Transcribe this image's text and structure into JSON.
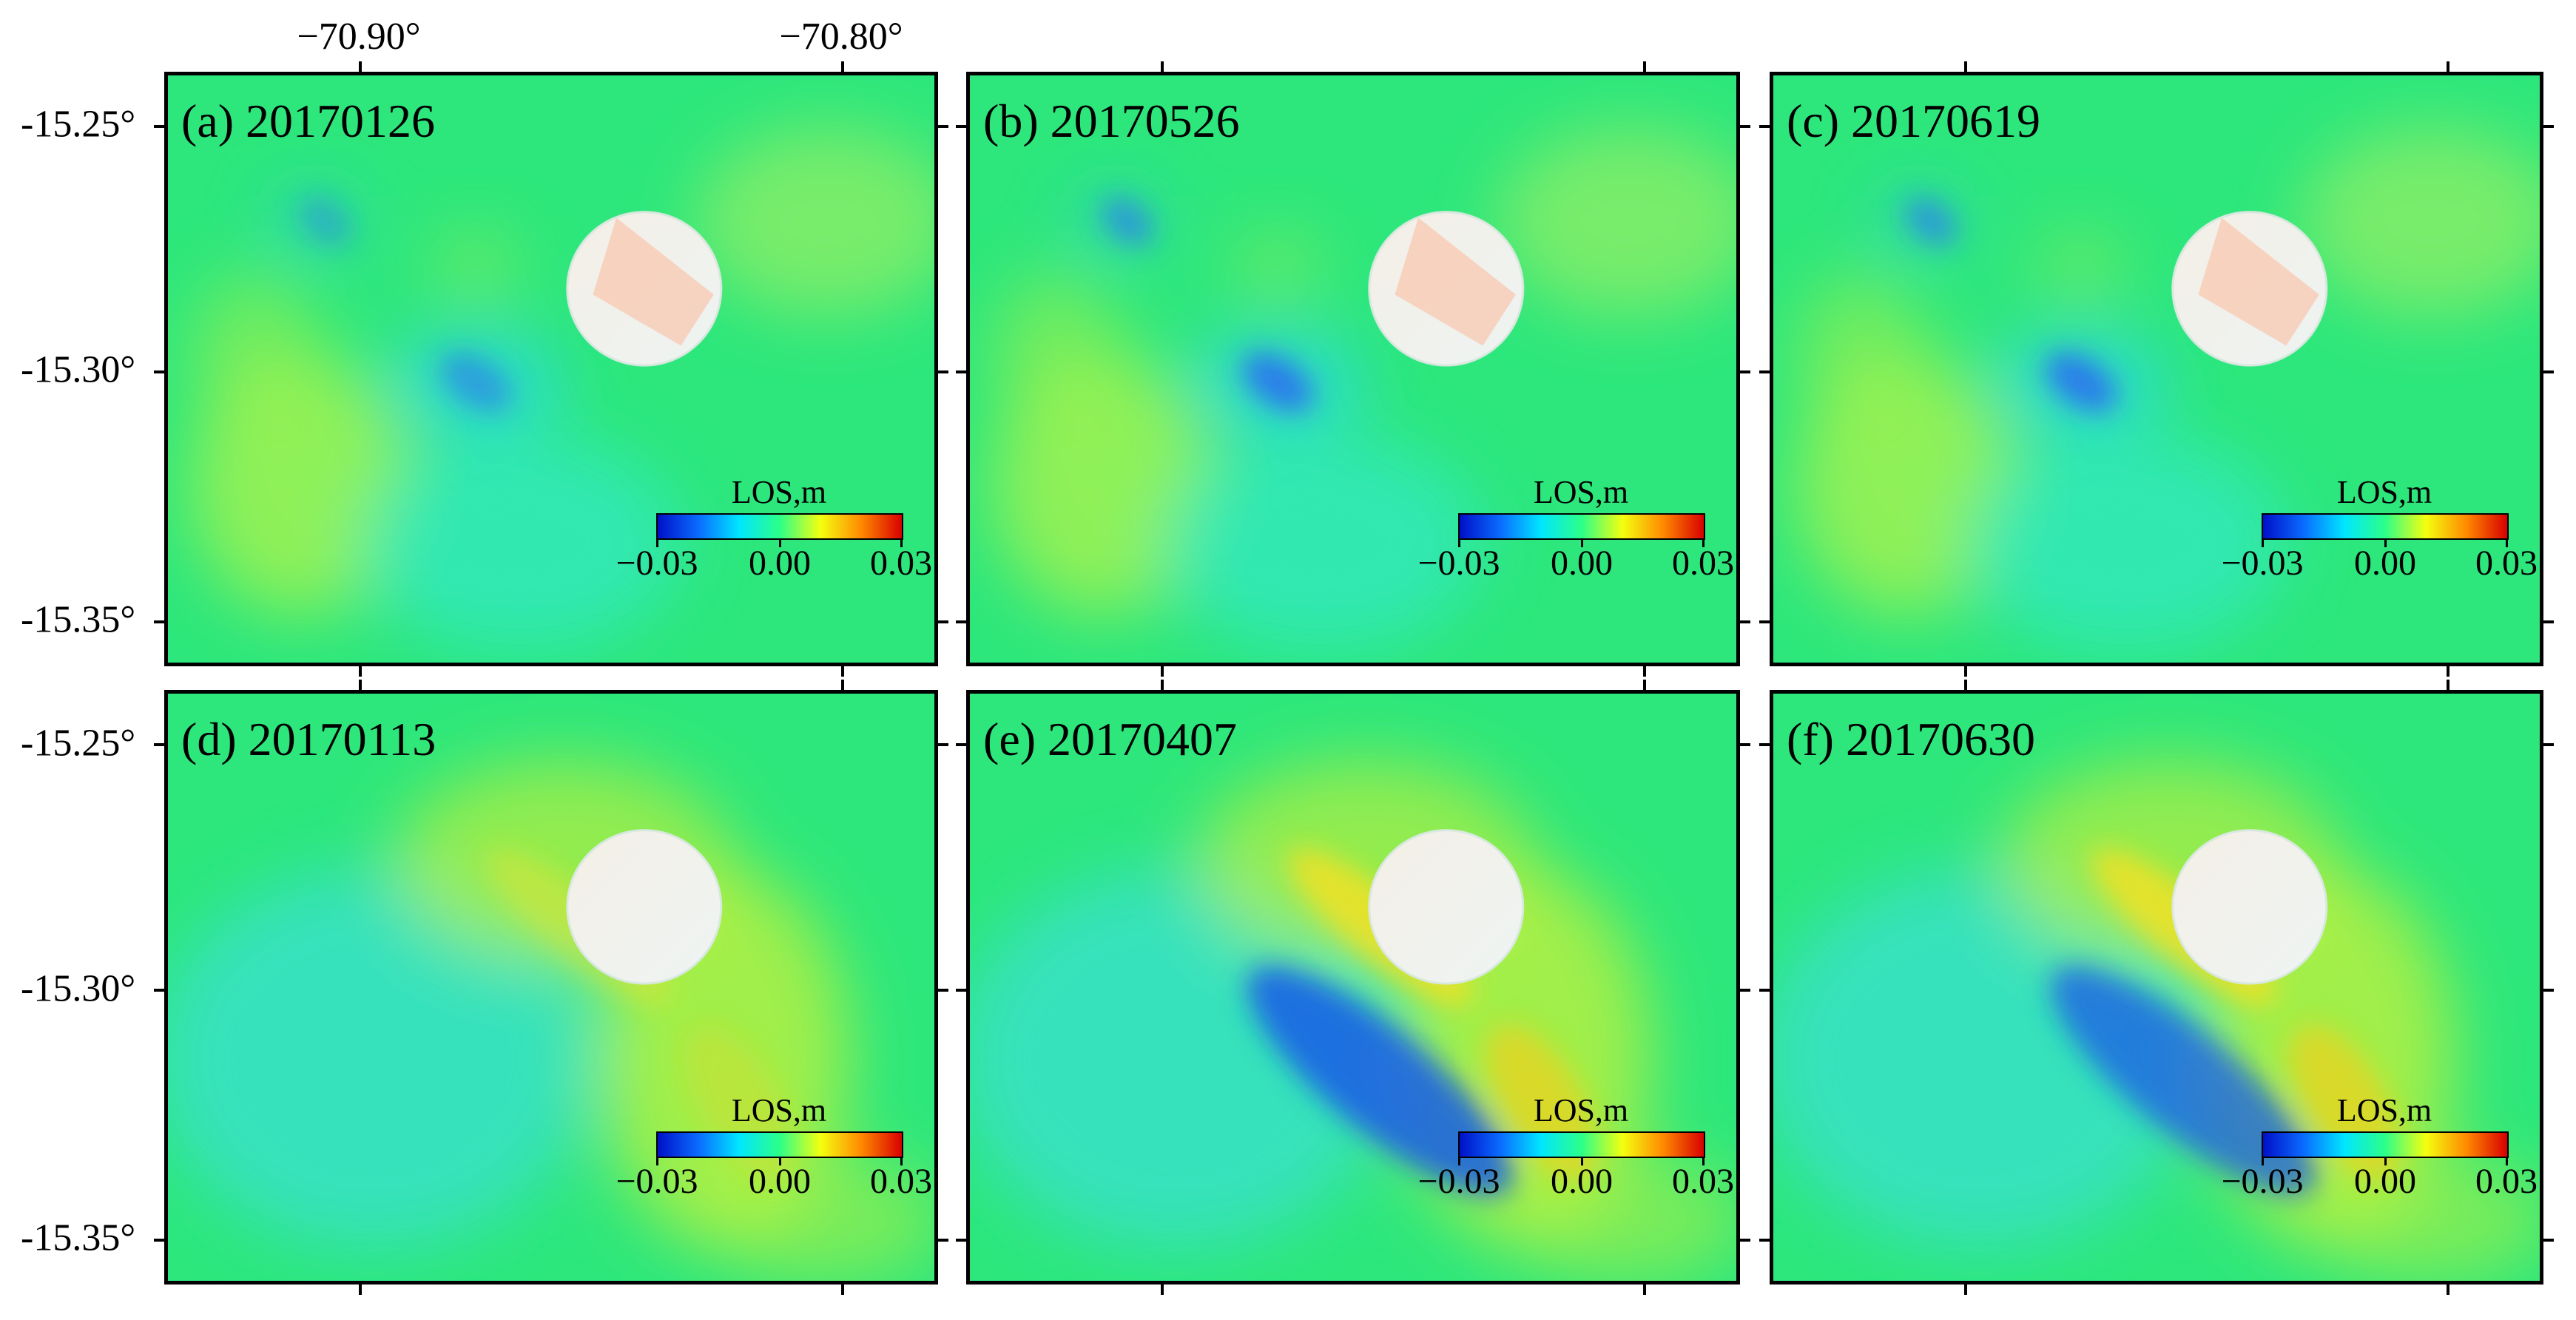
{
  "longitude_labels": [
    "−70.90°",
    "−70.80°"
  ],
  "latitude_labels": [
    "-15.25°",
    "-15.30°",
    "-15.35°"
  ],
  "colorbar": {
    "title": "LOS,m",
    "ticks": [
      "−0.03",
      "0.00",
      "0.03"
    ],
    "range": [
      -0.03,
      0.03
    ],
    "colors": [
      "#0010c8",
      "#0a6cff",
      "#00e6ff",
      "#2cff88",
      "#f4ff10",
      "#ff8a00",
      "#d80000"
    ]
  },
  "panels": [
    {
      "label": "(a) 20170126",
      "pattern": "short"
    },
    {
      "label": "(b) 20170526",
      "pattern": "short"
    },
    {
      "label": "(c) 20170619",
      "pattern": "short"
    },
    {
      "label": "(d) 20170113",
      "pattern": "long"
    },
    {
      "label": "(e) 20170407",
      "pattern": "long"
    },
    {
      "label": "(f) 20170630",
      "pattern": "long"
    }
  ],
  "colors": {
    "background_field": "#2de77c",
    "masked_circle": "#f2f5ee"
  }
}
